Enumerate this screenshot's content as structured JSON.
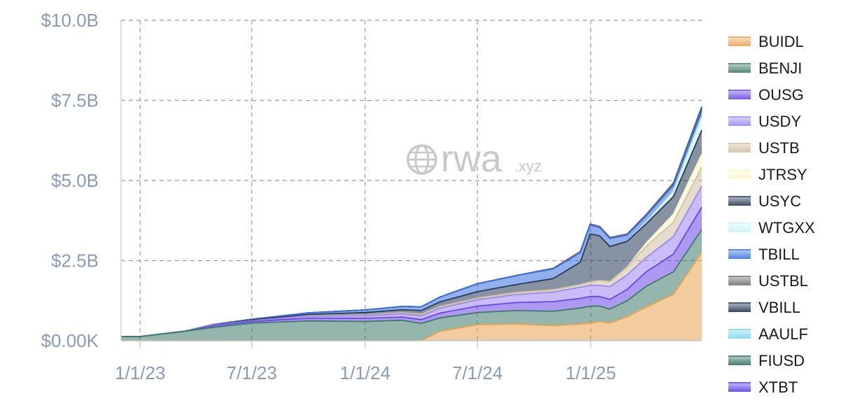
{
  "watermark": {
    "brand": "rwa",
    "suffix": ".xyz",
    "icon": "globe-icon"
  },
  "chart_data": {
    "type": "area",
    "stacked": true,
    "title": "",
    "xlabel": "",
    "ylabel": "",
    "x_ticks": [
      "1/1/23",
      "7/1/23",
      "1/1/24",
      "7/1/24",
      "1/1/25"
    ],
    "y_ticks": [
      "$0.00K",
      "$2.5B",
      "$5.0B",
      "$7.5B",
      "$10.0B"
    ],
    "x_domain": [
      "2022-12-01",
      "2025-06-30"
    ],
    "ylim": [
      0,
      10
    ],
    "y_unit": "billions USD",
    "grid": true,
    "legend_position": "right",
    "dates": [
      "2022-12-01",
      "2023-01-01",
      "2023-03-15",
      "2023-05-01",
      "2023-07-01",
      "2023-10-01",
      "2024-01-01",
      "2024-03-01",
      "2024-04-01",
      "2024-05-01",
      "2024-07-01",
      "2024-09-01",
      "2024-11-01",
      "2024-12-15",
      "2024-12-31",
      "2025-01-15",
      "2025-02-01",
      "2025-03-01",
      "2025-04-01",
      "2025-05-15",
      "2025-06-30"
    ],
    "series": [
      {
        "name": "BUIDL",
        "color": "#e8a34f",
        "values": [
          0,
          0,
          0,
          0,
          0,
          0,
          0,
          0,
          0,
          0.29,
          0.5,
          0.52,
          0.47,
          0.52,
          0.55,
          0.6,
          0.55,
          0.75,
          1.05,
          1.45,
          2.75
        ]
      },
      {
        "name": "BENJI",
        "color": "#3e7a68",
        "values": [
          0.13,
          0.13,
          0.3,
          0.42,
          0.55,
          0.62,
          0.6,
          0.64,
          0.54,
          0.42,
          0.38,
          0.42,
          0.45,
          0.5,
          0.53,
          0.48,
          0.44,
          0.5,
          0.65,
          0.7,
          0.72
        ]
      },
      {
        "name": "OUSG",
        "color": "#6a45e8",
        "values": [
          0,
          0,
          0,
          0.05,
          0.05,
          0.08,
          0.1,
          0.1,
          0.12,
          0.15,
          0.2,
          0.25,
          0.3,
          0.3,
          0.3,
          0.3,
          0.3,
          0.35,
          0.45,
          0.55,
          0.7
        ]
      },
      {
        "name": "USDY",
        "color": "#9a86f2",
        "values": [
          0,
          0,
          0,
          0.02,
          0.02,
          0.06,
          0.08,
          0.1,
          0.12,
          0.15,
          0.2,
          0.25,
          0.3,
          0.35,
          0.35,
          0.35,
          0.4,
          0.45,
          0.45,
          0.55,
          0.65
        ]
      },
      {
        "name": "USTB",
        "color": "#d2bfa0",
        "values": [
          0,
          0,
          0,
          0,
          0,
          0.01,
          0.02,
          0.03,
          0.04,
          0.05,
          0.05,
          0.06,
          0.07,
          0.08,
          0.1,
          0.15,
          0.15,
          0.25,
          0.35,
          0.45,
          0.6
        ]
      },
      {
        "name": "JTRSY",
        "color": "#fbf4c9",
        "values": [
          0,
          0,
          0,
          0,
          0,
          0,
          0,
          0,
          0,
          0,
          0,
          0,
          0,
          0,
          0,
          0,
          0,
          0,
          0.1,
          0.25,
          0.4
        ]
      },
      {
        "name": "USYC",
        "color": "#243a57",
        "values": [
          0,
          0,
          0,
          0.01,
          0.03,
          0.05,
          0.08,
          0.1,
          0.12,
          0.15,
          0.2,
          0.25,
          0.35,
          0.7,
          1.5,
          1.4,
          1.1,
          0.8,
          0.6,
          0.55,
          0.75
        ]
      },
      {
        "name": "WTGXX",
        "color": "#c8f5f5",
        "values": [
          0,
          0,
          0,
          0,
          0,
          0,
          0,
          0,
          0,
          0,
          0,
          0,
          0,
          0,
          0,
          0,
          0,
          0,
          0.05,
          0.15,
          0.4
        ]
      },
      {
        "name": "TBILL",
        "color": "#3a6fe0",
        "values": [
          0,
          0,
          0,
          0.01,
          0.02,
          0.05,
          0.08,
          0.1,
          0.12,
          0.15,
          0.25,
          0.28,
          0.3,
          0.3,
          0.28,
          0.26,
          0.25,
          0.2,
          0.2,
          0.2,
          0.2
        ]
      },
      {
        "name": "USTBL",
        "color": "#6e6e6e",
        "values": [
          0,
          0,
          0,
          0,
          0,
          0,
          0,
          0,
          0,
          0,
          0,
          0,
          0.02,
          0.03,
          0.03,
          0.03,
          0.03,
          0.03,
          0.04,
          0.05,
          0.06
        ]
      },
      {
        "name": "VBILL",
        "color": "#1e3550",
        "values": [
          0,
          0,
          0,
          0,
          0,
          0,
          0,
          0,
          0,
          0,
          0,
          0,
          0,
          0,
          0,
          0,
          0,
          0,
          0,
          0.02,
          0.04
        ]
      },
      {
        "name": "AAULF",
        "color": "#7ed6f0",
        "values": [
          0,
          0,
          0,
          0,
          0,
          0,
          0,
          0,
          0,
          0,
          0,
          0,
          0,
          0,
          0,
          0,
          0,
          0,
          0,
          0,
          0.02
        ]
      },
      {
        "name": "FIUSD",
        "color": "#2f6e5e",
        "values": [
          0,
          0,
          0,
          0,
          0,
          0,
          0,
          0,
          0,
          0,
          0,
          0,
          0,
          0,
          0,
          0,
          0,
          0,
          0,
          0,
          0.01
        ]
      },
      {
        "name": "XTBT",
        "color": "#5a3ee6",
        "values": [
          0,
          0,
          0,
          0,
          0,
          0,
          0,
          0,
          0,
          0,
          0,
          0,
          0,
          0,
          0,
          0,
          0,
          0,
          0,
          0,
          0.01
        ]
      }
    ]
  }
}
